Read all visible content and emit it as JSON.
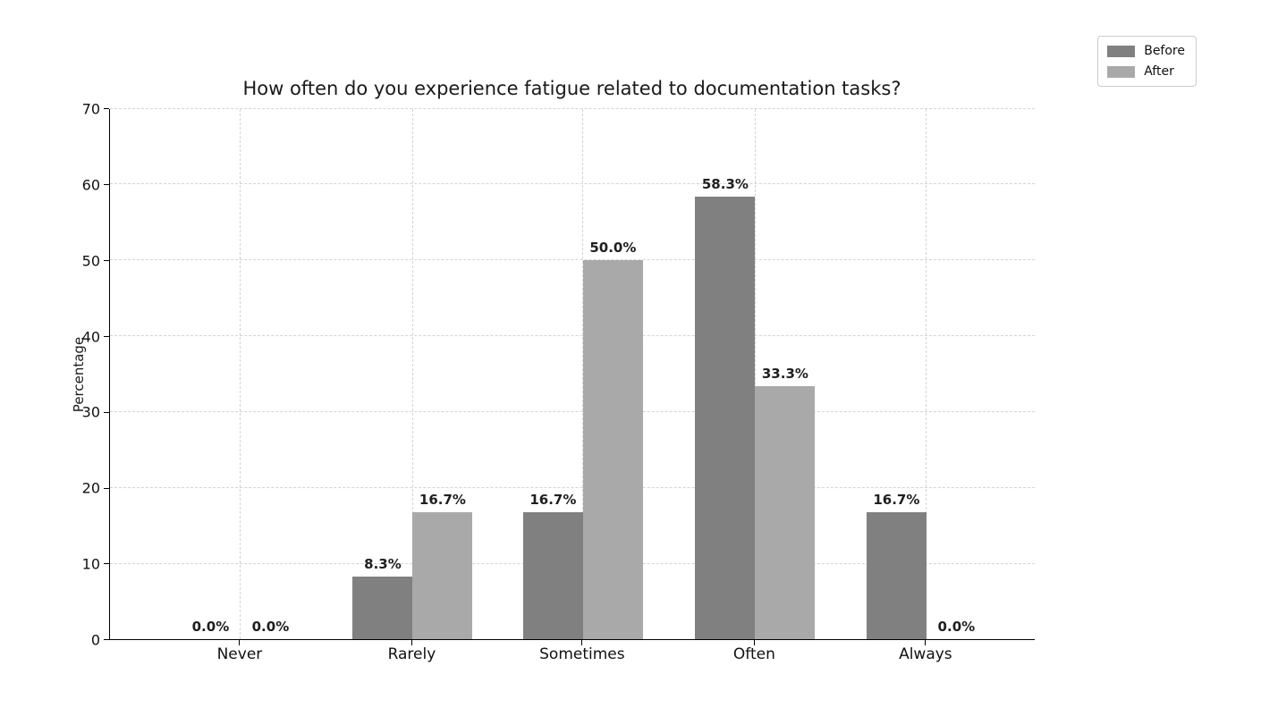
{
  "chart_data": {
    "type": "bar",
    "title": "How often do you experience fatigue related to documentation tasks?",
    "xlabel": "",
    "ylabel": "Percentage",
    "categories": [
      "Never",
      "Rarely",
      "Sometimes",
      "Often",
      "Always"
    ],
    "series": [
      {
        "name": "Before",
        "color": "#808080",
        "values": [
          0.0,
          8.3,
          16.7,
          58.3,
          16.7
        ],
        "labels": [
          "0.0%",
          "8.3%",
          "16.7%",
          "58.3%",
          "16.7%"
        ]
      },
      {
        "name": "After",
        "color": "#a9a9a9",
        "values": [
          0.0,
          16.7,
          50.0,
          33.3,
          0.0
        ],
        "labels": [
          "0.0%",
          "16.7%",
          "50.0%",
          "33.3%",
          "0.0%"
        ]
      }
    ],
    "ylim": [
      0,
      70
    ],
    "yticks": [
      "0",
      "10",
      "20",
      "30",
      "40",
      "50",
      "60",
      "70"
    ],
    "grid": true,
    "gridline_style": "dashed",
    "legend_position": "upper right, outside plot"
  }
}
